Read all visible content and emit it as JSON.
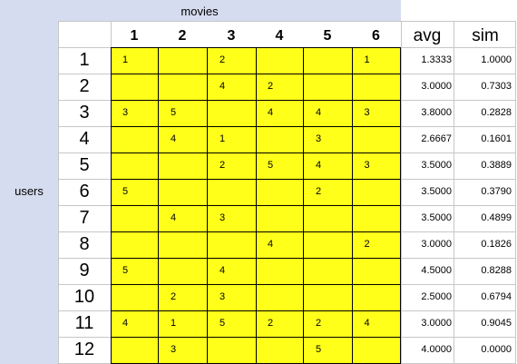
{
  "header": {
    "movies_label": "movies",
    "users_label": "users"
  },
  "columns": [
    "1",
    "2",
    "3",
    "4",
    "5",
    "6"
  ],
  "stat_headers": {
    "avg": "avg",
    "sim": "sim"
  },
  "rows": [
    {
      "user": "1",
      "cells": [
        "1",
        "",
        "2",
        "",
        "",
        "1"
      ],
      "avg": "1.3333",
      "sim": "1.0000"
    },
    {
      "user": "2",
      "cells": [
        "",
        "",
        "4",
        "2",
        "",
        ""
      ],
      "avg": "3.0000",
      "sim": "0.7303"
    },
    {
      "user": "3",
      "cells": [
        "3",
        "5",
        "",
        "4",
        "4",
        "3"
      ],
      "avg": "3.8000",
      "sim": "0.2828"
    },
    {
      "user": "4",
      "cells": [
        "",
        "4",
        "1",
        "",
        "3",
        ""
      ],
      "avg": "2.6667",
      "sim": "0.1601"
    },
    {
      "user": "5",
      "cells": [
        "",
        "",
        "2",
        "5",
        "4",
        "3"
      ],
      "avg": "3.5000",
      "sim": "0.3889"
    },
    {
      "user": "6",
      "cells": [
        "5",
        "",
        "",
        "",
        "2",
        ""
      ],
      "avg": "3.5000",
      "sim": "0.3790"
    },
    {
      "user": "7",
      "cells": [
        "",
        "4",
        "3",
        "",
        "",
        ""
      ],
      "avg": "3.5000",
      "sim": "0.4899"
    },
    {
      "user": "8",
      "cells": [
        "",
        "",
        "",
        "4",
        "",
        "2"
      ],
      "avg": "3.0000",
      "sim": "0.1826"
    },
    {
      "user": "9",
      "cells": [
        "5",
        "",
        "4",
        "",
        "",
        ""
      ],
      "avg": "4.5000",
      "sim": "0.8288"
    },
    {
      "user": "10",
      "cells": [
        "",
        "2",
        "3",
        "",
        "",
        ""
      ],
      "avg": "2.5000",
      "sim": "0.6794"
    },
    {
      "user": "11",
      "cells": [
        "4",
        "1",
        "5",
        "2",
        "2",
        "4"
      ],
      "avg": "3.0000",
      "sim": "0.9045"
    },
    {
      "user": "12",
      "cells": [
        "",
        "3",
        "",
        "",
        "5",
        ""
      ],
      "avg": "4.0000",
      "sim": "0.0000"
    }
  ],
  "colors": {
    "header_fill": "#d6dcef",
    "grid_fill": "#ffff1a",
    "grid_line": "#000000",
    "sheet_line": "#c7c7c7"
  }
}
